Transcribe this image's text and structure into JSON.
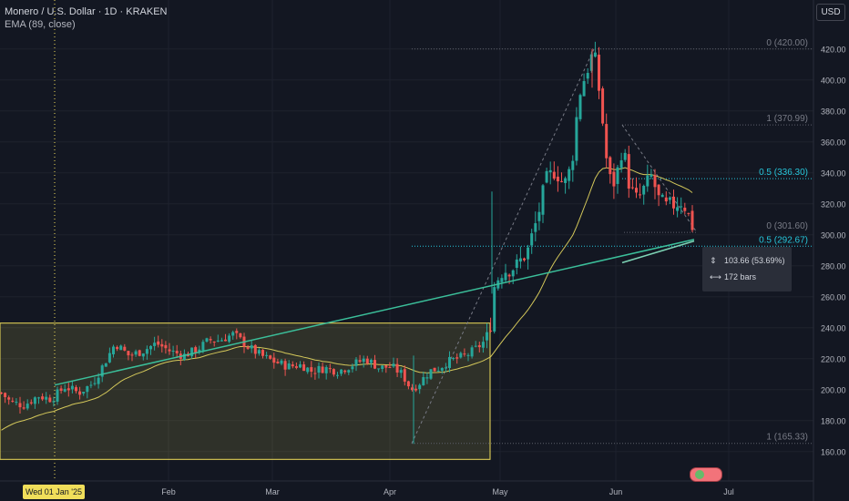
{
  "legend": {
    "symbol": "Monero / U.S. Dollar · 1D · KRAKEN",
    "indicator": "EMA (89, close)"
  },
  "currency_button": "USD",
  "crosshair_date": "Wed 01 Jan '25",
  "measure": {
    "change": "103.66 (53.69%)",
    "bars": "172 bars"
  },
  "chart_data": {
    "type": "candlestick",
    "x_ticks": [
      "Feb",
      "Mar",
      "Apr",
      "May",
      "Jun",
      "Jul"
    ],
    "y_ticks": [
      "160.00",
      "180.00",
      "200.00",
      "220.00",
      "240.00",
      "260.00",
      "280.00",
      "300.00",
      "320.00",
      "340.00",
      "360.00",
      "380.00",
      "400.00",
      "420.00"
    ],
    "ylim": [
      150,
      430
    ],
    "fib_levels": [
      {
        "label": "0 (420.00)",
        "value": 420.0
      },
      {
        "label": "1 (370.99)",
        "value": 370.99
      },
      {
        "label": "0.5 (336.30)",
        "value": 336.3
      },
      {
        "label": "0 (301.60)",
        "value": 301.6
      },
      {
        "label": "0.5 (292.67)",
        "value": 292.67
      },
      {
        "label": "1 (165.33)",
        "value": 165.33
      }
    ],
    "range_box": {
      "low": 155,
      "high": 243
    },
    "colors": {
      "up": "#26a69a",
      "down": "#ef5350",
      "ema": "#d4c85a",
      "trendline": "#3bbf9a",
      "box": "#f0de5a",
      "dotted_teal": "#26c6da"
    }
  }
}
